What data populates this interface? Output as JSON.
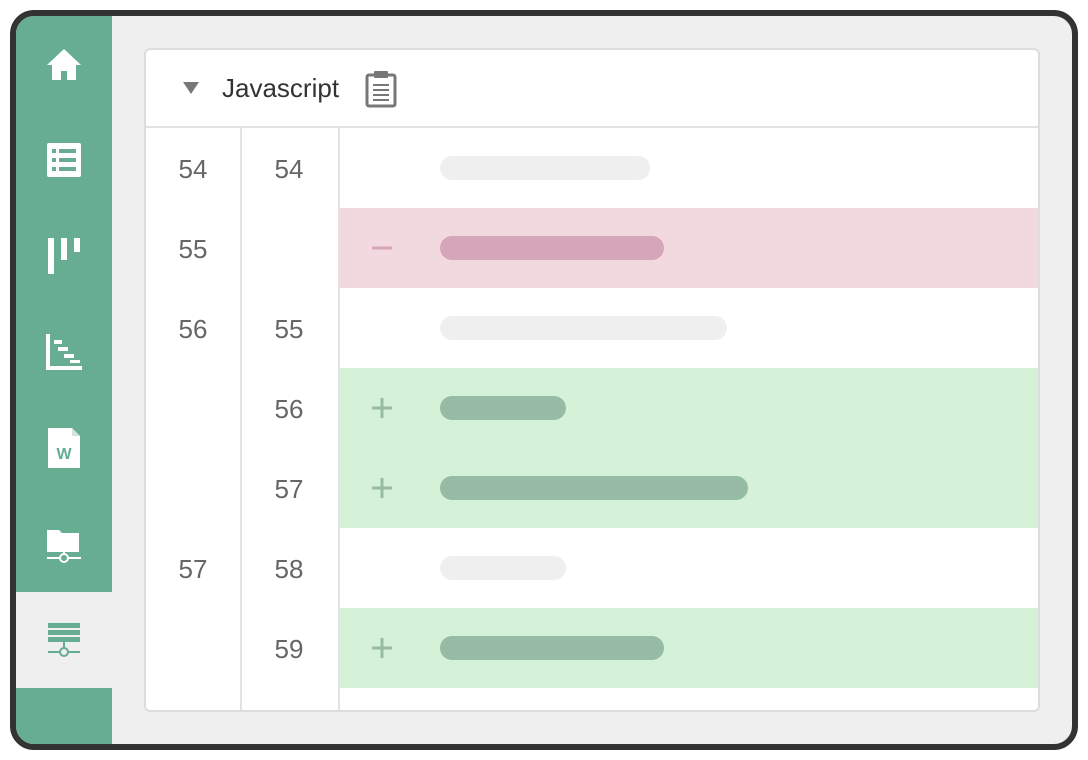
{
  "sidebar": {
    "items": [
      {
        "icon": "home-icon",
        "active": false
      },
      {
        "icon": "list-icon",
        "active": false
      },
      {
        "icon": "kanban-board-icon",
        "active": false
      },
      {
        "icon": "gantt-chart-icon",
        "active": false
      },
      {
        "icon": "word-document-icon",
        "active": false
      },
      {
        "icon": "network-folder-icon",
        "active": false
      },
      {
        "icon": "server-icon",
        "active": true
      }
    ],
    "accent_color": "#66ad91"
  },
  "file": {
    "name": "Javascript",
    "toggle_icon": "collapse-triangle-icon",
    "copy_icon": "clipboard-icon"
  },
  "diff": {
    "colors": {
      "removed_bg": "#f2d9e0",
      "added_bg": "#d5f1d7",
      "context_code": "#efefef",
      "removed_code": "#d5a6b7",
      "added_code": "#96bca5"
    },
    "rows": [
      {
        "type": "context",
        "old_line": "54",
        "new_line": "54",
        "marker": "",
        "code_length": 0.3
      },
      {
        "type": "removed",
        "old_line": "55",
        "new_line": "",
        "marker": "−",
        "code_length": 0.32
      },
      {
        "type": "context",
        "old_line": "56",
        "new_line": "55",
        "marker": "",
        "code_length": 0.41
      },
      {
        "type": "added",
        "old_line": "",
        "new_line": "56",
        "marker": "+",
        "code_length": 0.18
      },
      {
        "type": "added",
        "old_line": "",
        "new_line": "57",
        "marker": "+",
        "code_length": 0.44
      },
      {
        "type": "context",
        "old_line": "57",
        "new_line": "58",
        "marker": "",
        "code_length": 0.18
      },
      {
        "type": "added",
        "old_line": "",
        "new_line": "59",
        "marker": "+",
        "code_length": 0.32
      }
    ]
  }
}
